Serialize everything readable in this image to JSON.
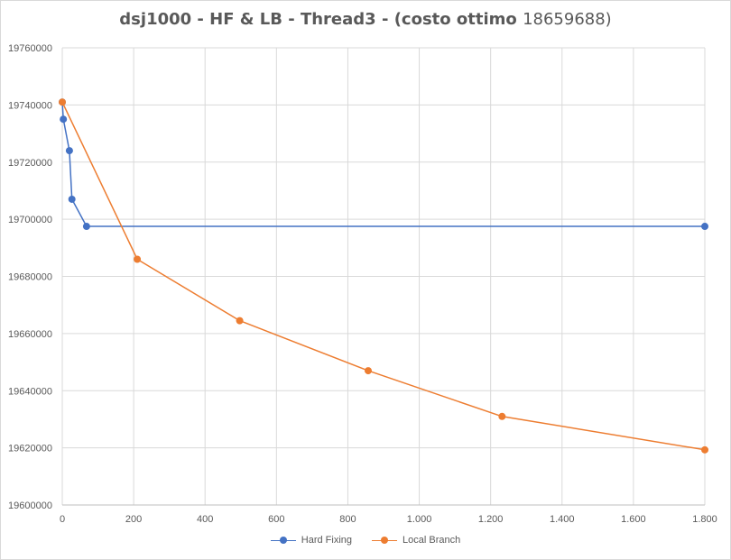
{
  "chart_data": {
    "type": "line",
    "title": "dsj1000 - HF & LB - Thread3  - (costo ottimo",
    "title_number": "18659688)",
    "xlabel": "",
    "ylabel": "",
    "xlim": [
      0,
      1800
    ],
    "ylim": [
      19600000,
      19760000
    ],
    "x_ticks": [
      0,
      200,
      400,
      600,
      800,
      1000,
      1200,
      1400,
      1600,
      1800
    ],
    "x_tick_labels": [
      "0",
      "200",
      "400",
      "600",
      "800",
      "1.000",
      "1.200",
      "1.400",
      "1.600",
      "1.800"
    ],
    "y_ticks": [
      19600000,
      19620000,
      19640000,
      19660000,
      19680000,
      19700000,
      19720000,
      19740000,
      19760000
    ],
    "y_tick_labels": [
      "19600000",
      "19620000",
      "19640000",
      "19660000",
      "19680000",
      "19700000",
      "19720000",
      "19740000",
      "19760000"
    ],
    "grid": true,
    "legend_position": "bottom",
    "series": [
      {
        "name": "Hard Fixing",
        "color": "#4472c4",
        "points": [
          [
            0,
            19741000
          ],
          [
            3,
            19735000
          ],
          [
            20,
            19724000
          ],
          [
            27,
            19707000
          ],
          [
            68,
            19697500
          ],
          [
            1800,
            19697500
          ]
        ]
      },
      {
        "name": "Local Branch",
        "color": "#ed7d31",
        "points": [
          [
            0,
            19741000
          ],
          [
            210,
            19686000
          ],
          [
            497,
            19664500
          ],
          [
            857,
            19647000
          ],
          [
            1232,
            19631000
          ],
          [
            1800,
            19619300
          ]
        ]
      }
    ]
  }
}
